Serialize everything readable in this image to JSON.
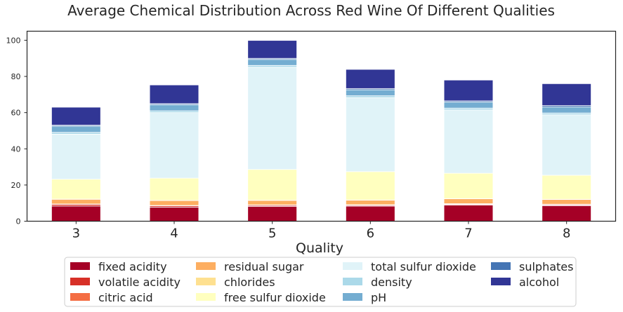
{
  "chart_data": {
    "type": "bar",
    "stacked": true,
    "title": "Average Chemical Distribution Across Red Wine Of Different Qualities",
    "xlabel": "Quality",
    "ylabel": "",
    "categories": [
      "3",
      "4",
      "5",
      "6",
      "7",
      "8"
    ],
    "ylim": [
      0,
      105
    ],
    "yticks": [
      "0",
      "20",
      "40",
      "60",
      "80",
      "100"
    ],
    "grid": false,
    "legend_position": "bottom-center",
    "series": [
      {
        "name": "fixed acidity",
        "color": "#a50026",
        "values": [
          8.4,
          7.8,
          8.2,
          8.3,
          8.9,
          8.6
        ]
      },
      {
        "name": "volatile acidity",
        "color": "#d73027",
        "values": [
          0.9,
          0.7,
          0.6,
          0.5,
          0.4,
          0.4
        ]
      },
      {
        "name": "citric acid",
        "color": "#f46d43",
        "values": [
          0.2,
          0.2,
          0.2,
          0.3,
          0.4,
          0.4
        ]
      },
      {
        "name": "residual sugar",
        "color": "#fdae61",
        "values": [
          2.6,
          2.7,
          2.5,
          2.5,
          2.7,
          2.6
        ]
      },
      {
        "name": "chlorides",
        "color": "#fee090",
        "values": [
          0.1,
          0.1,
          0.1,
          0.1,
          0.1,
          0.1
        ]
      },
      {
        "name": "free sulfur dioxide",
        "color": "#ffffbf",
        "values": [
          11.0,
          12.3,
          17.0,
          15.7,
          14.0,
          13.3
        ]
      },
      {
        "name": "total sulfur dioxide",
        "color": "#e0f3f8",
        "values": [
          24.9,
          36.2,
          56.5,
          40.9,
          35.0,
          33.4
        ]
      },
      {
        "name": "density",
        "color": "#abd9e9",
        "values": [
          1.0,
          1.0,
          1.0,
          1.0,
          1.0,
          1.0
        ]
      },
      {
        "name": "pH",
        "color": "#74add1",
        "values": [
          3.4,
          3.4,
          3.3,
          3.3,
          3.3,
          3.3
        ]
      },
      {
        "name": "sulphates",
        "color": "#4575b4",
        "values": [
          0.6,
          0.6,
          0.6,
          0.7,
          0.7,
          0.8
        ]
      },
      {
        "name": "alcohol",
        "color": "#313695",
        "values": [
          9.9,
          10.3,
          9.9,
          10.6,
          11.5,
          12.1
        ]
      }
    ]
  }
}
